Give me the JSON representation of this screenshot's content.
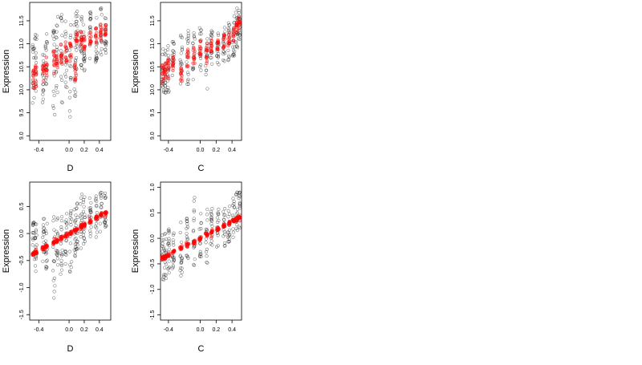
{
  "chart_data": [
    {
      "type": "scatter",
      "xlabel": "D",
      "ylabel": "Expression",
      "xlim": [
        -0.52,
        0.55
      ],
      "ylim": [
        8.9,
        11.9
      ],
      "xticks": [
        {
          "v": -0.4,
          "label": "-0.4"
        },
        {
          "v": 0.0,
          "label": "0.0"
        },
        {
          "v": 0.2,
          "label": "0.2"
        },
        {
          "v": 0.4,
          "label": "0.4"
        }
      ],
      "yticks": [
        {
          "v": 9.0,
          "label": "9.0"
        },
        {
          "v": 9.5,
          "label": "9.5"
        },
        {
          "v": 10.0,
          "label": "10.0"
        },
        {
          "v": 10.5,
          "label": "10.5"
        },
        {
          "v": 11.0,
          "label": "11.0"
        },
        {
          "v": 11.5,
          "label": "11.5"
        }
      ],
      "series_colors": {
        "observed": "#000000",
        "fitted": "#ff0000"
      },
      "columns": [
        {
          "x": -0.47,
          "lo": 9.7,
          "hi": 11.0,
          "mid": 10.35,
          "fit": 10.2,
          "spread": 0.5
        },
        {
          "x": -0.44,
          "lo": 9.9,
          "hi": 11.2,
          "mid": 10.4,
          "fit": 10.3,
          "spread": 0.45
        },
        {
          "x": -0.34,
          "lo": 9.6,
          "hi": 10.9,
          "mid": 10.3,
          "fit": 10.35,
          "spread": 0.4
        },
        {
          "x": -0.3,
          "lo": 10.1,
          "hi": 11.3,
          "mid": 10.7,
          "fit": 10.5,
          "spread": 0.45
        },
        {
          "x": -0.2,
          "lo": 9.3,
          "hi": 11.5,
          "mid": 10.6,
          "fit": 10.6,
          "spread": 0.5
        },
        {
          "x": -0.16,
          "lo": 9.9,
          "hi": 11.6,
          "mid": 10.9,
          "fit": 10.7,
          "spread": 0.5
        },
        {
          "x": -0.1,
          "lo": 9.6,
          "hi": 11.8,
          "mid": 10.7,
          "fit": 10.75,
          "spread": 0.5
        },
        {
          "x": -0.04,
          "lo": 10.0,
          "hi": 11.7,
          "mid": 10.9,
          "fit": 10.8,
          "spread": 0.5
        },
        {
          "x": 0.02,
          "lo": 9.4,
          "hi": 11.5,
          "mid": 10.6,
          "fit": 10.85,
          "spread": 0.5
        },
        {
          "x": 0.08,
          "lo": 9.8,
          "hi": 11.6,
          "mid": 10.3,
          "fit": 10.4,
          "spread": 0.4
        },
        {
          "x": 0.1,
          "lo": 10.2,
          "hi": 11.8,
          "mid": 11.1,
          "fit": 11.1,
          "spread": 0.35
        },
        {
          "x": 0.16,
          "lo": 10.4,
          "hi": 11.6,
          "mid": 11.1,
          "fit": 11.1,
          "spread": 0.4
        },
        {
          "x": 0.2,
          "lo": 10.4,
          "hi": 11.5,
          "mid": 11.2,
          "fit": 11.0,
          "spread": 0.35
        },
        {
          "x": 0.28,
          "lo": 10.6,
          "hi": 11.7,
          "mid": 11.1,
          "fit": 11.1,
          "spread": 0.35
        },
        {
          "x": 0.36,
          "lo": 10.6,
          "hi": 11.6,
          "mid": 11.3,
          "fit": 11.2,
          "spread": 0.35
        },
        {
          "x": 0.42,
          "lo": 10.7,
          "hi": 11.8,
          "mid": 11.3,
          "fit": 11.25,
          "spread": 0.35
        },
        {
          "x": 0.48,
          "lo": 10.8,
          "hi": 11.6,
          "mid": 11.2,
          "fit": 11.3,
          "spread": 0.3
        }
      ]
    },
    {
      "type": "scatter",
      "xlabel": "C",
      "ylabel": "Expression",
      "xlim": [
        -0.5,
        0.52
      ],
      "ylim": [
        8.9,
        11.9
      ],
      "xticks": [
        {
          "v": -0.4,
          "label": "-0.4"
        },
        {
          "v": 0.0,
          "label": "0.0"
        },
        {
          "v": 0.2,
          "label": "0.2"
        },
        {
          "v": 0.4,
          "label": "0.4"
        }
      ],
      "yticks": [
        {
          "v": 9.0,
          "label": "9.0"
        },
        {
          "v": 9.5,
          "label": "9.5"
        },
        {
          "v": 10.0,
          "label": "10.0"
        },
        {
          "v": 10.5,
          "label": "10.5"
        },
        {
          "v": 11.0,
          "label": "11.0"
        },
        {
          "v": 11.5,
          "label": "11.5"
        }
      ],
      "series_colors": {
        "observed": "#000000",
        "fitted": "#ff0000"
      },
      "columns": [
        {
          "x": -0.47,
          "lo": 9.8,
          "hi": 10.9,
          "mid": 10.3,
          "fit": 10.35,
          "spread": 0.4
        },
        {
          "x": -0.44,
          "lo": 9.9,
          "hi": 11.0,
          "mid": 10.4,
          "fit": 10.4,
          "spread": 0.4
        },
        {
          "x": -0.4,
          "lo": 9.7,
          "hi": 11.0,
          "mid": 10.5,
          "fit": 10.45,
          "spread": 0.45
        },
        {
          "x": -0.34,
          "lo": 10.2,
          "hi": 11.1,
          "mid": 10.6,
          "fit": 10.55,
          "spread": 0.35
        },
        {
          "x": -0.24,
          "lo": 10.1,
          "hi": 11.2,
          "mid": 10.5,
          "fit": 10.35,
          "spread": 0.35
        },
        {
          "x": -0.16,
          "lo": 10.1,
          "hi": 11.3,
          "mid": 10.8,
          "fit": 10.7,
          "spread": 0.4
        },
        {
          "x": -0.08,
          "lo": 10.2,
          "hi": 11.3,
          "mid": 10.7,
          "fit": 10.75,
          "spread": 0.4
        },
        {
          "x": 0.0,
          "lo": 10.4,
          "hi": 11.4,
          "mid": 10.9,
          "fit": 10.9,
          "spread": 0.35
        },
        {
          "x": 0.08,
          "lo": 10.0,
          "hi": 11.3,
          "mid": 10.7,
          "fit": 10.8,
          "spread": 0.45
        },
        {
          "x": 0.14,
          "lo": 10.5,
          "hi": 11.3,
          "mid": 10.95,
          "fit": 10.95,
          "spread": 0.3
        },
        {
          "x": 0.22,
          "lo": 10.5,
          "hi": 11.3,
          "mid": 10.95,
          "fit": 10.95,
          "spread": 0.3
        },
        {
          "x": 0.3,
          "lo": 10.6,
          "hi": 11.4,
          "mid": 11.0,
          "fit": 11.05,
          "spread": 0.3
        },
        {
          "x": 0.36,
          "lo": 10.6,
          "hi": 11.5,
          "mid": 11.1,
          "fit": 11.1,
          "spread": 0.3
        },
        {
          "x": 0.42,
          "lo": 10.7,
          "hi": 11.6,
          "mid": 11.2,
          "fit": 11.2,
          "spread": 0.3
        },
        {
          "x": 0.46,
          "lo": 10.9,
          "hi": 11.8,
          "mid": 11.35,
          "fit": 11.4,
          "spread": 0.3
        },
        {
          "x": 0.49,
          "lo": 11.0,
          "hi": 11.8,
          "mid": 11.45,
          "fit": 11.45,
          "spread": 0.25
        }
      ]
    },
    {
      "type": "scatter",
      "xlabel": "D",
      "ylabel": "Expression",
      "xlim": [
        -0.52,
        0.55
      ],
      "ylim": [
        -1.6,
        0.95
      ],
      "xticks": [
        {
          "v": -0.4,
          "label": "-0.4"
        },
        {
          "v": 0.0,
          "label": "0.0"
        },
        {
          "v": 0.2,
          "label": "0.2"
        },
        {
          "v": 0.4,
          "label": "0.4"
        }
      ],
      "yticks": [
        {
          "v": -1.5,
          "label": "-1.5"
        },
        {
          "v": -1.0,
          "label": "-1.0"
        },
        {
          "v": -0.5,
          "label": "-0.5"
        },
        {
          "v": 0.0,
          "label": "0.0"
        },
        {
          "v": 0.5,
          "label": "0.5"
        }
      ],
      "series_colors": {
        "observed": "#000000",
        "fitted": "#ff0000"
      },
      "fit_line": {
        "intercept": 0.0,
        "slope": 0.8
      },
      "columns": [
        {
          "x": -0.47,
          "lo": -0.55,
          "hi": 0.3,
          "mid": -0.35
        },
        {
          "x": -0.44,
          "lo": -0.7,
          "hi": 0.2,
          "mid": -0.33
        },
        {
          "x": -0.34,
          "lo": -0.6,
          "hi": 0.3,
          "mid": -0.25
        },
        {
          "x": -0.3,
          "lo": -0.7,
          "hi": 0.2,
          "mid": -0.2
        },
        {
          "x": -0.2,
          "lo": -1.2,
          "hi": 0.4,
          "mid": -0.18
        },
        {
          "x": -0.16,
          "lo": -0.6,
          "hi": 0.3,
          "mid": -0.1
        },
        {
          "x": -0.1,
          "lo": -0.8,
          "hi": 0.4,
          "mid": -0.1
        },
        {
          "x": -0.04,
          "lo": -0.6,
          "hi": 0.4,
          "mid": -0.02
        },
        {
          "x": 0.02,
          "lo": -0.75,
          "hi": 0.6,
          "mid": 0.0
        },
        {
          "x": 0.08,
          "lo": -0.5,
          "hi": 0.6,
          "mid": 0.05
        },
        {
          "x": 0.1,
          "lo": -0.3,
          "hi": 0.7,
          "mid": 0.1
        },
        {
          "x": 0.16,
          "lo": -0.3,
          "hi": 0.8,
          "mid": 0.15
        },
        {
          "x": 0.2,
          "lo": -0.25,
          "hi": 0.7,
          "mid": 0.18
        },
        {
          "x": 0.28,
          "lo": -0.2,
          "hi": 0.7,
          "mid": 0.22
        },
        {
          "x": 0.36,
          "lo": -0.1,
          "hi": 0.75,
          "mid": 0.3
        },
        {
          "x": 0.42,
          "lo": 0.0,
          "hi": 0.8,
          "mid": 0.35
        },
        {
          "x": 0.48,
          "lo": 0.1,
          "hi": 0.75,
          "mid": 0.4
        }
      ]
    },
    {
      "type": "scatter",
      "xlabel": "C",
      "ylabel": "Expression",
      "xlim": [
        -0.5,
        0.52
      ],
      "ylim": [
        -1.6,
        1.1
      ],
      "xticks": [
        {
          "v": -0.4,
          "label": "-0.4"
        },
        {
          "v": 0.0,
          "label": "0.0"
        },
        {
          "v": 0.2,
          "label": "0.2"
        },
        {
          "v": 0.4,
          "label": "0.4"
        }
      ],
      "yticks": [
        {
          "v": -1.5,
          "label": "-1.5"
        },
        {
          "v": -1.0,
          "label": "-1.0"
        },
        {
          "v": -0.5,
          "label": "-0.5"
        },
        {
          "v": 0.0,
          "label": "0.0"
        },
        {
          "v": 0.5,
          "label": "0.5"
        },
        {
          "v": 1.0,
          "label": "1.0"
        }
      ],
      "series_colors": {
        "observed": "#000000",
        "fitted": "#ff0000"
      },
      "fit_line": {
        "intercept": 0.0,
        "slope": 0.82
      },
      "columns": [
        {
          "x": -0.47,
          "lo": -0.9,
          "hi": 0.1,
          "mid": -0.35
        },
        {
          "x": -0.44,
          "lo": -0.8,
          "hi": 0.1,
          "mid": -0.35
        },
        {
          "x": -0.4,
          "lo": -0.7,
          "hi": 0.2,
          "mid": -0.3
        },
        {
          "x": -0.34,
          "lo": -0.6,
          "hi": 0.2,
          "mid": -0.25
        },
        {
          "x": -0.24,
          "lo": -0.8,
          "hi": 0.5,
          "mid": -0.2
        },
        {
          "x": -0.16,
          "lo": -0.5,
          "hi": 0.4,
          "mid": -0.1
        },
        {
          "x": -0.08,
          "lo": -0.6,
          "hi": 0.8,
          "mid": -0.05
        },
        {
          "x": 0.0,
          "lo": -0.4,
          "hi": 0.5,
          "mid": 0.0
        },
        {
          "x": 0.08,
          "lo": -0.5,
          "hi": 0.6,
          "mid": 0.1
        },
        {
          "x": 0.14,
          "lo": -0.3,
          "hi": 0.6,
          "mid": 0.12
        },
        {
          "x": 0.22,
          "lo": -0.2,
          "hi": 0.6,
          "mid": 0.18
        },
        {
          "x": 0.3,
          "lo": -0.2,
          "hi": 0.6,
          "mid": 0.22
        },
        {
          "x": 0.36,
          "lo": -0.1,
          "hi": 0.7,
          "mid": 0.3
        },
        {
          "x": 0.42,
          "lo": 0.0,
          "hi": 0.8,
          "mid": 0.35
        },
        {
          "x": 0.46,
          "lo": 0.1,
          "hi": 0.9,
          "mid": 0.4
        },
        {
          "x": 0.49,
          "lo": 0.2,
          "hi": 1.0,
          "mid": 0.45
        }
      ]
    }
  ]
}
